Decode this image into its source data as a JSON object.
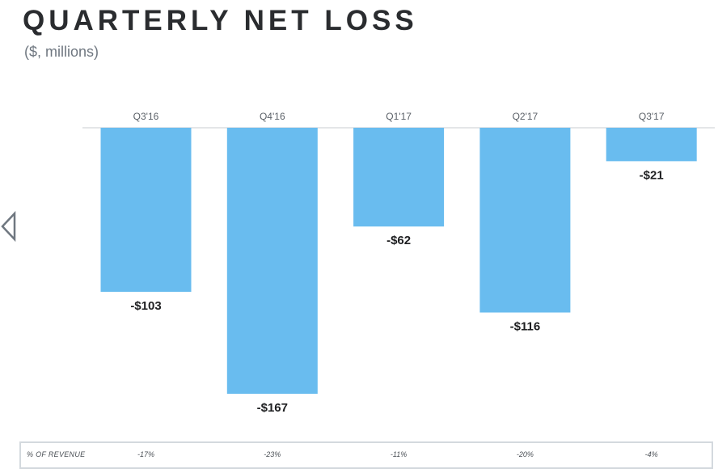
{
  "chart_data": {
    "type": "bar",
    "title": "QUARTERLY NET LOSS",
    "subtitle": "($, millions)",
    "categories": [
      "Q3'16",
      "Q4'16",
      "Q1'17",
      "Q2'17",
      "Q3'17"
    ],
    "values": [
      -103,
      -167,
      -62,
      -116,
      -21
    ],
    "data_labels": [
      "-$103",
      "-$167",
      "-$62",
      "-$116",
      "-$21"
    ],
    "ylim": [
      -167,
      0
    ],
    "bar_color": "#69bcef",
    "grid": false,
    "percent_of_revenue": {
      "label": "% OF REVENUE",
      "values": [
        "-17%",
        "-23%",
        "-11%",
        "-20%",
        "-4%"
      ]
    }
  }
}
